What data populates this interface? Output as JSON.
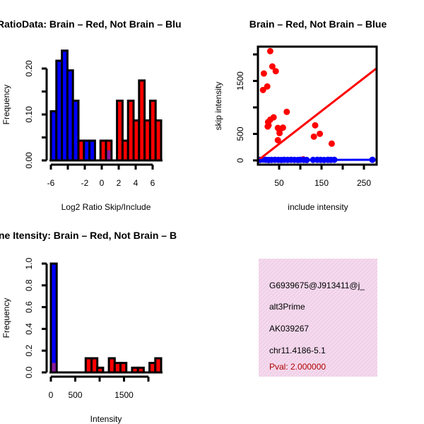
{
  "colors": {
    "red": "#ff0000",
    "blue": "#0000ff",
    "purple": "#8b1a9b",
    "info_bg": "#f6d8ef",
    "pval": "#b00000"
  },
  "chart_data": [
    {
      "type": "bar",
      "title": "RatioData: Brain – Red, Not Brain – Blu",
      "xlabel": "Log2 Ratio Skip/Include",
      "ylabel": "Frequency",
      "xlim": [
        -6,
        7
      ],
      "ylim": [
        0,
        0.24
      ],
      "bin_start": -6,
      "bin_width": 0.65,
      "bars": [
        {
          "value": 0.107,
          "color": "blue"
        },
        {
          "value": 0.217,
          "color": "blue"
        },
        {
          "value": 0.239,
          "color": "blue"
        },
        {
          "value": 0.196,
          "color": "blue"
        },
        {
          "value": 0.13,
          "color": "blue"
        },
        {
          "value": 0.043,
          "color": "red"
        },
        {
          "value": 0.043,
          "color": "blue"
        },
        {
          "value": 0.043,
          "color": "blue"
        },
        {
          "value": 0,
          "color": "red"
        },
        {
          "value": 0.043,
          "color": "red"
        },
        {
          "value": 0.043,
          "color": "red",
          "overlap": 0.022
        },
        {
          "value": 0,
          "color": "red"
        },
        {
          "value": 0.13,
          "color": "red"
        },
        {
          "value": 0.043,
          "color": "red"
        },
        {
          "value": 0.13,
          "color": "red"
        },
        {
          "value": 0.087,
          "color": "red"
        },
        {
          "value": 0.174,
          "color": "red"
        },
        {
          "value": 0.087,
          "color": "red"
        },
        {
          "value": 0.13,
          "color": "red"
        },
        {
          "value": 0.087,
          "color": "red"
        }
      ],
      "xticks": [
        -6,
        -4,
        -2,
        0,
        2,
        4,
        6
      ],
      "xtick_labels": [
        "-6",
        "",
        "-2",
        "0",
        "2",
        "4",
        "6"
      ],
      "yticks": [
        0,
        0.05,
        0.1,
        0.15,
        0.2
      ],
      "ytick_labels": [
        "0.00",
        "",
        "0.10",
        "",
        "0.20"
      ]
    },
    {
      "type": "scatter",
      "title": "Brain – Red, Not Brain – Blue",
      "xlabel": "include intensity",
      "ylabel": "skip intensity",
      "xlim": [
        0,
        280
      ],
      "ylim": [
        0,
        2147
      ],
      "series": [
        {
          "name": "Brain",
          "color": "red",
          "points": [
            [
              29,
              2062
            ],
            [
              14,
              1640
            ],
            [
              34,
              1773
            ],
            [
              42,
              1684
            ],
            [
              12,
              1329
            ],
            [
              22,
              1396
            ],
            [
              68,
              916
            ],
            [
              37,
              813
            ],
            [
              29,
              768
            ],
            [
              24,
              724
            ],
            [
              25,
              662
            ],
            [
              23,
              640
            ],
            [
              47,
              613
            ],
            [
              59,
              618
            ],
            [
              51,
              516
            ],
            [
              51,
              573
            ],
            [
              47,
              382
            ],
            [
              135,
              662
            ],
            [
              132,
              449
            ],
            [
              146,
              502
            ],
            [
              174,
              316
            ],
            [
              107,
              20
            ]
          ],
          "fit": [
            [
              0,
              0
            ],
            [
              280,
              1740
            ]
          ]
        },
        {
          "name": "Not Brain",
          "color": "blue",
          "points": [
            [
              5,
              10
            ],
            [
              12,
              15
            ],
            [
              18,
              12
            ],
            [
              25,
              8
            ],
            [
              32,
              10
            ],
            [
              40,
              12
            ],
            [
              48,
              10
            ],
            [
              55,
              9
            ],
            [
              62,
              11
            ],
            [
              70,
              10
            ],
            [
              78,
              12
            ],
            [
              86,
              10
            ],
            [
              94,
              9
            ],
            [
              100,
              12
            ],
            [
              108,
              10
            ],
            [
              115,
              8
            ],
            [
              130,
              10
            ],
            [
              140,
              12
            ],
            [
              148,
              10
            ],
            [
              156,
              9
            ],
            [
              165,
              11
            ],
            [
              172,
              10
            ],
            [
              180,
              12
            ],
            [
              270,
              12
            ]
          ],
          "fit": [
            [
              0,
              8
            ],
            [
              280,
              12
            ]
          ]
        }
      ],
      "xticks": [
        50,
        100,
        150,
        200,
        250
      ],
      "xtick_labels": [
        "50",
        "",
        "150",
        "",
        "250"
      ],
      "yticks": [
        0,
        500,
        1000,
        1500,
        2000
      ],
      "ytick_labels": [
        "0",
        "500",
        "",
        "1500",
        ""
      ]
    },
    {
      "type": "bar",
      "title": "ne Itensity: Brain – Red, Not Brain – B",
      "xlabel": "Intensity",
      "ylabel": "Frequency",
      "xlim": [
        0,
        2260
      ],
      "ylim": [
        0,
        1.0
      ],
      "bin_start": 0,
      "bin_width": 119,
      "bars": [
        {
          "value": 1.0,
          "color": "blue",
          "overlap": 0.087
        },
        {
          "value": 0,
          "color": "red"
        },
        {
          "value": 0,
          "color": "red"
        },
        {
          "value": 0,
          "color": "red"
        },
        {
          "value": 0,
          "color": "red"
        },
        {
          "value": 0,
          "color": "red"
        },
        {
          "value": 0.13,
          "color": "red"
        },
        {
          "value": 0.13,
          "color": "red"
        },
        {
          "value": 0.043,
          "color": "red"
        },
        {
          "value": 0,
          "color": "red"
        },
        {
          "value": 0.13,
          "color": "red"
        },
        {
          "value": 0.087,
          "color": "red"
        },
        {
          "value": 0.087,
          "color": "red"
        },
        {
          "value": 0,
          "color": "red"
        },
        {
          "value": 0.043,
          "color": "red"
        },
        {
          "value": 0.043,
          "color": "red"
        },
        {
          "value": 0,
          "color": "red"
        },
        {
          "value": 0.087,
          "color": "red"
        },
        {
          "value": 0.13,
          "color": "red"
        }
      ],
      "xticks": [
        0,
        500,
        1000,
        1500,
        2000
      ],
      "xtick_labels": [
        "0",
        "500",
        "",
        "1500",
        ""
      ],
      "yticks": [
        0,
        0.2,
        0.4,
        0.6,
        0.8,
        1.0
      ],
      "ytick_labels": [
        "0.0",
        "0.2",
        "0.4",
        "0.6",
        "0.8",
        "1.0"
      ]
    }
  ],
  "info": {
    "id": "G6939675@J913411@j_",
    "event_type": "alt3Prime",
    "accession": "AK039267",
    "location": "chr11.4186-5.1",
    "pval": "Pval: 2.000000"
  }
}
